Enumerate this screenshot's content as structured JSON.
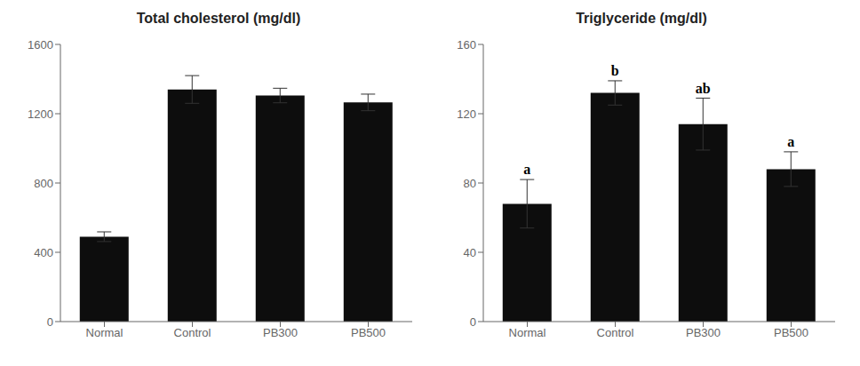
{
  "chart_data": [
    {
      "type": "bar",
      "title": "Total cholesterol (mg/dl)",
      "categories": [
        "Normal",
        "Control",
        "PB300",
        "PB500"
      ],
      "values": [
        490,
        1340,
        1305,
        1265
      ],
      "errors": [
        28,
        80,
        42,
        48
      ],
      "ylim": [
        0,
        1600
      ],
      "yticks": [
        0,
        400,
        800,
        1200,
        1600
      ],
      "color": "#0d0d0d",
      "grid": false
    },
    {
      "type": "bar",
      "title": "Triglyceride (mg/dl)",
      "categories": [
        "Normal",
        "Control",
        "PB300",
        "PB500"
      ],
      "values": [
        68,
        132,
        114,
        88
      ],
      "errors": [
        14,
        7,
        15,
        10
      ],
      "ylim": [
        0,
        160
      ],
      "yticks": [
        0,
        40,
        80,
        120,
        160
      ],
      "annotations": [
        "a",
        "b",
        "ab",
        "a"
      ],
      "color": "#0d0d0d",
      "grid": false
    }
  ]
}
